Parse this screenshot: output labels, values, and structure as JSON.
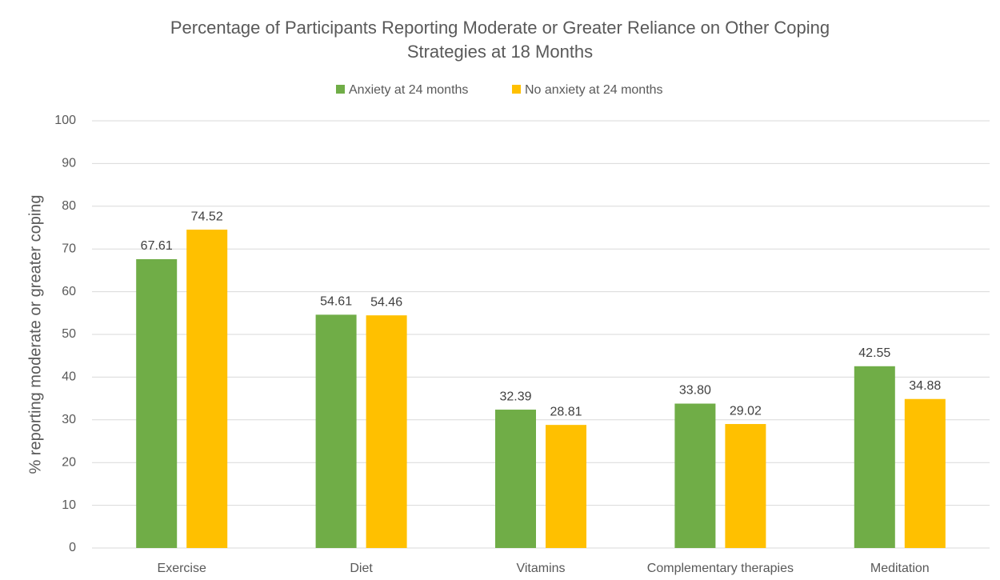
{
  "chart_data": {
    "type": "bar",
    "title": "Percentage of Participants Reporting Moderate or Greater Reliance on Other Coping Strategies at 18 Months",
    "y_label": "% reporting moderate or greater coping",
    "categories": [
      "Exercise",
      "Diet",
      "Vitamins",
      "Complementary therapies",
      "Meditation"
    ],
    "series": [
      {
        "name": "Anxiety at 24 months",
        "color": "#70ad47",
        "values": [
          67.61,
          54.61,
          32.39,
          33.8,
          42.55
        ],
        "value_labels": [
          "67.61",
          "54.61",
          "32.39",
          "33.80",
          "42.55"
        ]
      },
      {
        "name": "No anxiety at 24 months",
        "color": "#ffc000",
        "values": [
          74.52,
          54.46,
          28.81,
          29.02,
          34.88
        ],
        "value_labels": [
          "74.52",
          "54.46",
          "28.81",
          "29.02",
          "34.88"
        ]
      }
    ],
    "ylim": [
      0,
      100
    ],
    "yticks": [
      0,
      10,
      20,
      30,
      40,
      50,
      60,
      70,
      80,
      90,
      100
    ],
    "grid": true,
    "legend": "top"
  }
}
